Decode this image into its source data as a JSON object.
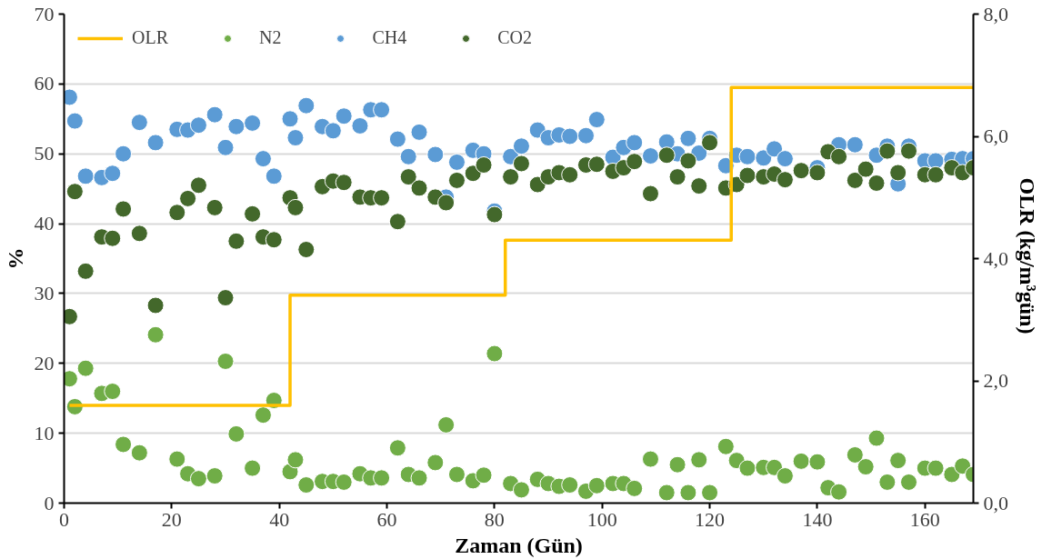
{
  "chart_data": {
    "type": "scatter",
    "xlabel": "Zaman (Gün)",
    "ylabel": "%",
    "y2label": "OLR  (kg/m³gün)",
    "x": [
      1,
      2,
      4,
      7,
      9,
      11,
      14,
      17,
      21,
      23,
      25,
      28,
      30,
      32,
      35,
      37,
      39,
      42,
      43,
      45,
      48,
      50,
      52,
      55,
      57,
      59,
      62,
      64,
      66,
      69,
      71,
      73,
      76,
      78,
      80,
      83,
      85,
      88,
      90,
      92,
      94,
      97,
      99,
      102,
      104,
      106,
      109,
      112,
      114,
      116,
      118,
      120,
      123,
      125,
      127,
      130,
      132,
      134,
      137,
      140,
      142,
      144,
      147,
      149,
      151,
      153,
      155,
      157,
      160,
      162,
      165,
      167,
      169
    ],
    "xlim": [
      0,
      169
    ],
    "xticks": [
      0,
      20,
      40,
      60,
      80,
      100,
      120,
      140,
      160
    ],
    "ylim": [
      0,
      70
    ],
    "yticks": [
      0,
      10,
      20,
      30,
      40,
      50,
      60,
      70
    ],
    "y2lim": [
      0,
      8
    ],
    "y2ticks": [
      {
        "value": 0,
        "label": "0,0"
      },
      {
        "value": 2,
        "label": "2,0"
      },
      {
        "value": 4,
        "label": "4,0"
      },
      {
        "value": 6,
        "label": "6,0"
      },
      {
        "value": 8,
        "label": "8,0"
      }
    ],
    "grid": "y",
    "legend": "top left",
    "marker": "circle",
    "series": [
      {
        "name": "OLR",
        "type": "step",
        "marker": "none",
        "axis": "y2",
        "color": "#ffc000",
        "x": [
          1,
          42,
          82,
          124,
          169
        ],
        "values": [
          1.6,
          3.4,
          4.3,
          6.8,
          6.8
        ]
      },
      {
        "name": "N2",
        "color": "#70ad47",
        "values": [
          17.8,
          13.8,
          19.3,
          15.7,
          16.0,
          8.4,
          7.2,
          24.1,
          6.3,
          4.2,
          3.5,
          3.9,
          20.3,
          9.9,
          5.0,
          12.6,
          14.7,
          4.5,
          6.2,
          2.6,
          3.1,
          3.1,
          3.0,
          4.2,
          3.6,
          3.6,
          7.9,
          4.1,
          3.6,
          5.8,
          11.2,
          4.1,
          3.2,
          4.0,
          21.4,
          2.8,
          1.9,
          3.4,
          2.8,
          2.4,
          2.6,
          1.7,
          2.5,
          2.8,
          2.8,
          2.1,
          6.3,
          1.5,
          5.5,
          1.5,
          6.2,
          1.5,
          8.1,
          6.1,
          5.0,
          5.1,
          5.1,
          3.9,
          6.0,
          5.9,
          2.2,
          1.6,
          6.9,
          5.2,
          9.3,
          3.0,
          6.1,
          3.0,
          5.0,
          5.0,
          4.1,
          5.3,
          4.1
        ]
      },
      {
        "name": "CH4",
        "color": "#5b9bd5",
        "values": [
          58.1,
          54.7,
          46.8,
          46.6,
          47.2,
          50.0,
          54.5,
          51.6,
          53.5,
          53.4,
          54.1,
          55.6,
          50.9,
          53.9,
          54.4,
          49.3,
          46.8,
          55.0,
          52.3,
          56.9,
          53.9,
          53.3,
          55.4,
          54.0,
          56.3,
          56.3,
          52.1,
          49.6,
          53.1,
          49.9,
          43.8,
          48.8,
          50.5,
          50.0,
          41.8,
          49.6,
          51.1,
          53.4,
          52.3,
          52.7,
          52.5,
          52.6,
          54.9,
          49.5,
          50.9,
          51.6,
          49.7,
          51.7,
          50.0,
          52.2,
          50.1,
          52.2,
          48.3,
          49.8,
          49.6,
          49.4,
          50.7,
          49.3,
          null,
          48.0,
          null,
          51.3,
          51.3,
          null,
          49.8,
          51.1,
          45.7,
          51.1,
          49.0,
          49.0,
          49.2,
          49.3,
          49.3
        ]
      },
      {
        "name": "CO2",
        "color": "#43682b",
        "values": [
          26.7,
          44.6,
          33.2,
          38.1,
          37.9,
          42.1,
          38.6,
          28.3,
          41.6,
          43.6,
          45.5,
          42.3,
          29.4,
          37.5,
          41.4,
          38.1,
          37.7,
          43.7,
          42.3,
          36.3,
          45.3,
          46.1,
          45.9,
          43.8,
          43.7,
          43.7,
          40.3,
          46.7,
          45.1,
          43.8,
          43.0,
          46.2,
          47.2,
          48.4,
          41.3,
          46.7,
          48.6,
          45.6,
          46.7,
          47.3,
          47.0,
          48.4,
          48.5,
          47.5,
          48.0,
          48.9,
          44.3,
          49.8,
          46.7,
          49.0,
          45.4,
          51.6,
          45.1,
          45.6,
          46.9,
          46.7,
          47.1,
          46.3,
          47.6,
          47.3,
          50.3,
          49.6,
          46.2,
          47.8,
          45.8,
          50.4,
          47.3,
          50.4,
          47.0,
          47.0,
          48.0,
          47.3,
          48.0
        ]
      }
    ]
  }
}
